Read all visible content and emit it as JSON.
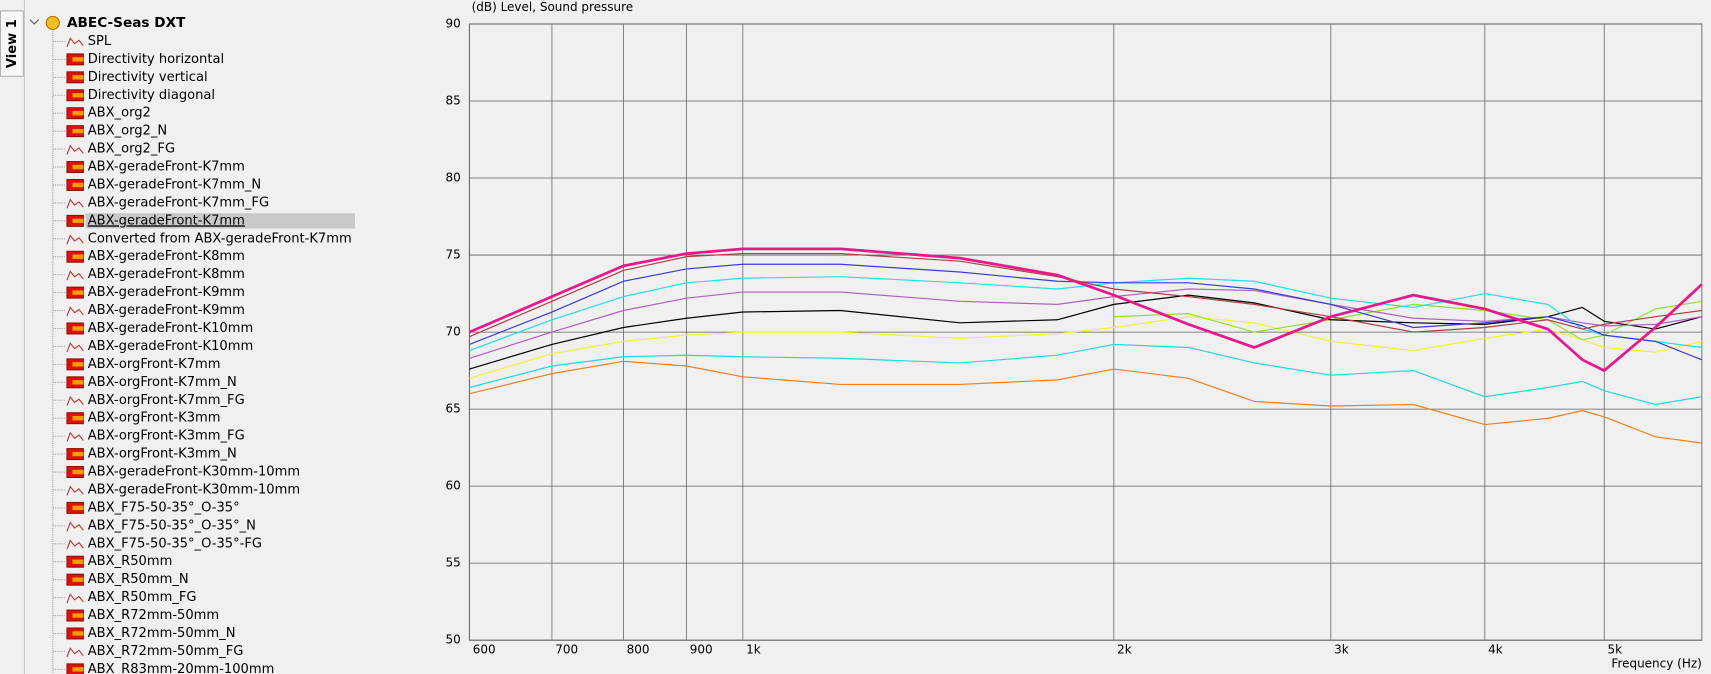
{
  "tab": "View 1",
  "tree": {
    "root": "ABEC-Seas DXT",
    "selected": 10,
    "items": [
      {
        "label": "SPL",
        "kind": "graph"
      },
      {
        "label": "Directivity horizontal",
        "kind": "data"
      },
      {
        "label": "Directivity vertical",
        "kind": "data"
      },
      {
        "label": "Directivity diagonal",
        "kind": "data"
      },
      {
        "label": "ABX_org2",
        "kind": "data"
      },
      {
        "label": "ABX_org2_N",
        "kind": "data"
      },
      {
        "label": "ABX_org2_FG",
        "kind": "graph"
      },
      {
        "label": "ABX-geradeFront-K7mm",
        "kind": "data"
      },
      {
        "label": "ABX-geradeFront-K7mm_N",
        "kind": "data"
      },
      {
        "label": "ABX-geradeFront-K7mm_FG",
        "kind": "graph"
      },
      {
        "label": "ABX-geradeFront-K7mm",
        "kind": "data"
      },
      {
        "label": "Converted from ABX-geradeFront-K7mm",
        "kind": "graph"
      },
      {
        "label": "ABX-geradeFront-K8mm",
        "kind": "data"
      },
      {
        "label": "ABX-geradeFront-K8mm",
        "kind": "graph"
      },
      {
        "label": "ABX-geradeFront-K9mm",
        "kind": "data"
      },
      {
        "label": "ABX-geradeFront-K9mm",
        "kind": "graph"
      },
      {
        "label": "ABX-geradeFront-K10mm",
        "kind": "data"
      },
      {
        "label": "ABX-geradeFront-K10mm",
        "kind": "graph"
      },
      {
        "label": "ABX-orgFront-K7mm",
        "kind": "data"
      },
      {
        "label": "ABX-orgFront-K7mm_N",
        "kind": "data"
      },
      {
        "label": "ABX-orgFront-K7mm_FG",
        "kind": "graph"
      },
      {
        "label": "ABX-orgFront-K3mm",
        "kind": "data"
      },
      {
        "label": "ABX-orgFront-K3mm_FG",
        "kind": "graph"
      },
      {
        "label": "ABX-orgFront-K3mm_N",
        "kind": "data"
      },
      {
        "label": "ABX-geradeFront-K30mm-10mm",
        "kind": "data"
      },
      {
        "label": "ABX-geradeFront-K30mm-10mm",
        "kind": "graph"
      },
      {
        "label": "ABX_F75-50-35°_O-35°",
        "kind": "data"
      },
      {
        "label": "ABX_F75-50-35°_O-35°_N",
        "kind": "graph"
      },
      {
        "label": "ABX_F75-50-35°_O-35°-FG",
        "kind": "graph"
      },
      {
        "label": "ABX_R50mm",
        "kind": "data"
      },
      {
        "label": "ABX_R50mm_N",
        "kind": "data"
      },
      {
        "label": "ABX_R50mm_FG",
        "kind": "graph"
      },
      {
        "label": "ABX_R72mm-50mm",
        "kind": "data"
      },
      {
        "label": "ABX_R72mm-50mm_N",
        "kind": "data"
      },
      {
        "label": "ABX_R72mm-50mm_FG",
        "kind": "graph"
      },
      {
        "label": "ABX_R83mm-20mm-100mm",
        "kind": "data"
      }
    ]
  },
  "chart_data": {
    "type": "line",
    "y_label": "(dB)  Level, Sound pressure",
    "x_label": "Frequency  (Hz)",
    "log_x": true,
    "grid": true,
    "x": [
      600,
      700,
      800,
      900,
      1000,
      1200,
      1500,
      1800,
      2000,
      2300,
      2600,
      3000,
      3500,
      4000,
      4500,
      4800,
      5000,
      5500,
      6000
    ],
    "xlim": [
      600,
      6000
    ],
    "xticks": [
      600,
      700,
      800,
      900,
      {
        "value": 1000,
        "label": "1k"
      },
      {
        "value": 2000,
        "label": "2k"
      },
      {
        "value": 3000,
        "label": "3k"
      },
      {
        "value": 4000,
        "label": "4k"
      },
      {
        "value": 5000,
        "label": "5k"
      }
    ],
    "ylim": [
      50,
      90
    ],
    "yticks": [
      50,
      55,
      60,
      65,
      70,
      75,
      80,
      85,
      90
    ],
    "series": [
      {
        "color": "#f08020",
        "values": [
          66.0,
          67.3,
          68.1,
          67.8,
          67.1,
          66.6,
          66.6,
          66.9,
          67.6,
          67.0,
          65.5,
          65.2,
          65.3,
          64.0,
          64.4,
          64.9,
          64.5,
          63.2,
          62.8
        ]
      },
      {
        "color": "#20d8e0",
        "values": [
          66.4,
          67.8,
          68.4,
          68.5,
          68.4,
          68.3,
          68.0,
          68.5,
          69.2,
          69.0,
          68.0,
          67.2,
          67.5,
          65.8,
          66.4,
          66.8,
          66.2,
          65.3,
          65.8
        ]
      },
      {
        "color": "#f0f040",
        "values": [
          67.0,
          68.6,
          69.4,
          69.8,
          70.0,
          70.0,
          69.6,
          69.9,
          70.3,
          71.0,
          70.6,
          69.4,
          68.8,
          69.6,
          70.2,
          69.5,
          69.0,
          68.7,
          69.4
        ]
      },
      {
        "color": "#90e030",
        "values": [
          null,
          null,
          null,
          null,
          null,
          null,
          null,
          null,
          71.0,
          71.2,
          70.0,
          70.8,
          71.8,
          71.4,
          70.8,
          69.5,
          69.8,
          71.5,
          72.0
        ]
      },
      {
        "color": "#000000",
        "values": [
          67.6,
          69.2,
          70.3,
          70.9,
          71.3,
          71.4,
          70.6,
          70.8,
          71.8,
          72.4,
          71.9,
          70.8,
          70.6,
          70.5,
          71.0,
          71.6,
          70.7,
          70.2,
          71.0
        ]
      },
      {
        "color": "#b060c0",
        "values": [
          68.3,
          70.0,
          71.4,
          72.2,
          72.6,
          72.6,
          72.0,
          71.8,
          72.3,
          72.8,
          72.7,
          71.8,
          70.9,
          70.7,
          71.0,
          70.6,
          70.4,
          70.5,
          71.0
        ]
      },
      {
        "color": "#20e0e8",
        "values": [
          68.8,
          70.8,
          72.3,
          73.2,
          73.5,
          73.6,
          73.2,
          72.8,
          73.2,
          73.5,
          73.3,
          72.2,
          71.6,
          72.5,
          71.8,
          70.2,
          69.8,
          69.4,
          69.0
        ]
      },
      {
        "color": "#3c3cd8",
        "values": [
          69.2,
          71.3,
          73.3,
          74.1,
          74.4,
          74.4,
          73.9,
          73.3,
          73.2,
          73.2,
          72.8,
          71.8,
          70.3,
          70.6,
          71.0,
          70.4,
          69.8,
          69.4,
          68.2
        ]
      },
      {
        "color": "#b04040",
        "values": [
          69.7,
          72.0,
          74.0,
          74.9,
          75.1,
          75.1,
          74.6,
          73.6,
          72.8,
          72.3,
          71.8,
          71.0,
          70.0,
          70.3,
          70.8,
          70.2,
          70.5,
          71.0,
          71.4
        ]
      },
      {
        "color": "#e8188c",
        "width": 2.5,
        "values": [
          70.0,
          72.3,
          74.3,
          75.1,
          75.4,
          75.4,
          74.8,
          73.7,
          72.4,
          70.5,
          69.0,
          71.0,
          72.4,
          71.5,
          70.2,
          68.2,
          67.5,
          70.3,
          73.1
        ]
      }
    ]
  }
}
